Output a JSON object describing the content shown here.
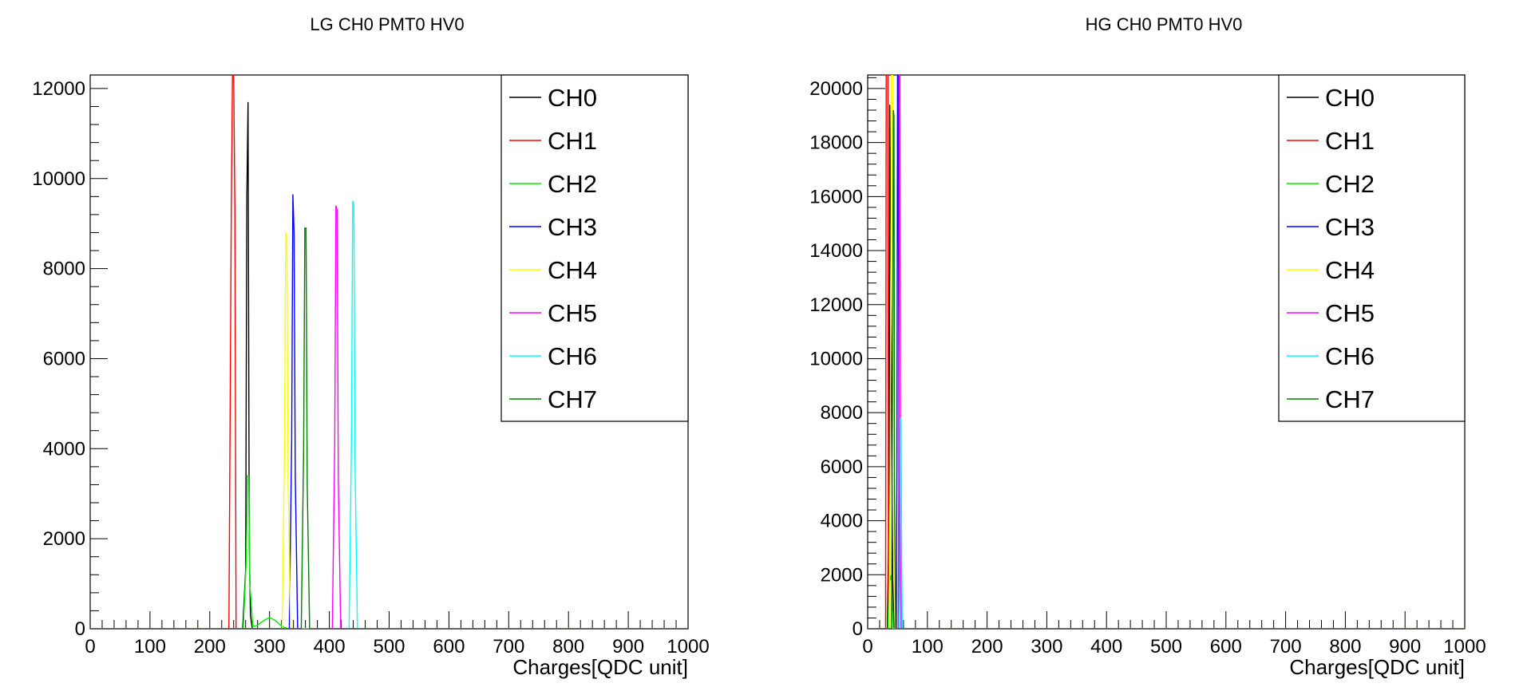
{
  "colors": {
    "CH0": "#000000",
    "CH1": "#ff0000",
    "CH2": "#00ee00",
    "CH3": "#0000ff",
    "CH4": "#ffff00",
    "CH5": "#ff00ff",
    "CH6": "#00ffff",
    "CH7": "#008000"
  },
  "chart_data": [
    {
      "type": "line",
      "title": "LG CH0 PMT0 HV0",
      "xlabel": "Charges[QDC unit]",
      "ylabel": "",
      "xlim": [
        0,
        1000
      ],
      "ylim": [
        0,
        12300
      ],
      "xticks": [
        0,
        100,
        200,
        300,
        400,
        500,
        600,
        700,
        800,
        900,
        1000
      ],
      "yticks": [
        0,
        2000,
        4000,
        6000,
        8000,
        10000,
        12000
      ],
      "legend_position": "top-right",
      "legend": [
        "CH0",
        "CH1",
        "CH2",
        "CH3",
        "CH4",
        "CH5",
        "CH6",
        "CH7"
      ],
      "series": [
        {
          "name": "CH0",
          "x": [
            0,
            255,
            260,
            262,
            264,
            266,
            268,
            271,
            1000
          ],
          "y": [
            0,
            0,
            1300,
            9600,
            11700,
            2000,
            300,
            0,
            0
          ]
        },
        {
          "name": "CH1",
          "x": [
            0,
            232,
            236,
            238,
            240,
            242,
            244,
            1000
          ],
          "y": [
            0,
            0,
            9300,
            12300,
            12300,
            9300,
            0,
            0
          ]
        },
        {
          "name": "CH2",
          "x": [
            0,
            256,
            261,
            263,
            265,
            267,
            272,
            280,
            290,
            300,
            310,
            320,
            330,
            1000
          ],
          "y": [
            0,
            0,
            1500,
            3400,
            3400,
            1000,
            50,
            80,
            180,
            250,
            180,
            60,
            0,
            0
          ]
        },
        {
          "name": "CH3",
          "x": [
            0,
            333,
            337,
            339,
            341,
            343,
            347,
            1000
          ],
          "y": [
            0,
            0,
            4200,
            9650,
            8800,
            3400,
            0,
            0
          ]
        },
        {
          "name": "CH4",
          "x": [
            0,
            321,
            325,
            327,
            329,
            331,
            335,
            1000
          ],
          "y": [
            0,
            0,
            4000,
            8800,
            8700,
            3300,
            0,
            0
          ]
        },
        {
          "name": "CH5",
          "x": [
            0,
            405,
            409,
            411,
            413,
            415,
            419,
            1000
          ],
          "y": [
            0,
            0,
            4100,
            9400,
            9300,
            3300,
            0,
            0
          ]
        },
        {
          "name": "CH6",
          "x": [
            0,
            433,
            437,
            439,
            441,
            443,
            447,
            1000
          ],
          "y": [
            0,
            0,
            4200,
            9500,
            9400,
            3600,
            0,
            0
          ]
        },
        {
          "name": "CH7",
          "x": [
            0,
            353,
            357,
            359,
            361,
            363,
            367,
            1000
          ],
          "y": [
            0,
            0,
            4000,
            8900,
            8900,
            3200,
            0,
            0
          ]
        }
      ]
    },
    {
      "type": "line",
      "title": "HG CH0 PMT0 HV0",
      "xlabel": "Charges[QDC unit]",
      "ylabel": "",
      "xlim": [
        0,
        1000
      ],
      "ylim": [
        0,
        20500
      ],
      "xticks": [
        0,
        100,
        200,
        300,
        400,
        500,
        600,
        700,
        800,
        900,
        1000
      ],
      "yticks": [
        0,
        2000,
        4000,
        6000,
        8000,
        10000,
        12000,
        14000,
        16000,
        18000,
        20000
      ],
      "legend_position": "top-right",
      "legend": [
        "CH0",
        "CH1",
        "CH2",
        "CH3",
        "CH4",
        "CH5",
        "CH6",
        "CH7"
      ],
      "series": [
        {
          "name": "CH0",
          "x": [
            0,
            33,
            36,
            37,
            38,
            39,
            40,
            41,
            42,
            44,
            1000
          ],
          "y": [
            0,
            0,
            5000,
            19400,
            15300,
            11700,
            8000,
            4600,
            1800,
            0,
            0
          ]
        },
        {
          "name": "CH1",
          "x": [
            0,
            30,
            31,
            32,
            33,
            34,
            35,
            1000
          ],
          "y": [
            0,
            0,
            20500,
            20500,
            20500,
            20500,
            0,
            0
          ]
        },
        {
          "name": "CH2",
          "x": [
            0,
            34,
            36,
            37,
            38,
            39,
            40,
            41,
            43,
            1000
          ],
          "y": [
            0,
            0,
            1500,
            2000,
            1800,
            1900,
            2000,
            800,
            0,
            0
          ]
        },
        {
          "name": "CH3",
          "x": [
            0,
            48,
            49,
            50,
            51,
            52,
            53,
            1000
          ],
          "y": [
            0,
            0,
            6000,
            20500,
            20500,
            9000,
            0,
            0
          ]
        },
        {
          "name": "CH4",
          "x": [
            0,
            36,
            38,
            40,
            42,
            44,
            46,
            1000
          ],
          "y": [
            0,
            0,
            7000,
            20500,
            20500,
            5000,
            0,
            0
          ]
        },
        {
          "name": "CH5",
          "x": [
            0,
            51,
            52,
            53,
            54,
            55,
            56,
            1000
          ],
          "y": [
            0,
            0,
            5000,
            20500,
            20500,
            4000,
            0,
            0
          ]
        },
        {
          "name": "CH6",
          "x": [
            0,
            53,
            54,
            55,
            56,
            57,
            58,
            1000
          ],
          "y": [
            0,
            0,
            2500,
            7800,
            7500,
            2600,
            0,
            0
          ]
        },
        {
          "name": "CH7",
          "x": [
            0,
            40,
            42,
            43,
            44,
            45,
            47,
            1000
          ],
          "y": [
            0,
            0,
            12000,
            19200,
            19000,
            5000,
            0,
            0
          ]
        }
      ]
    }
  ]
}
